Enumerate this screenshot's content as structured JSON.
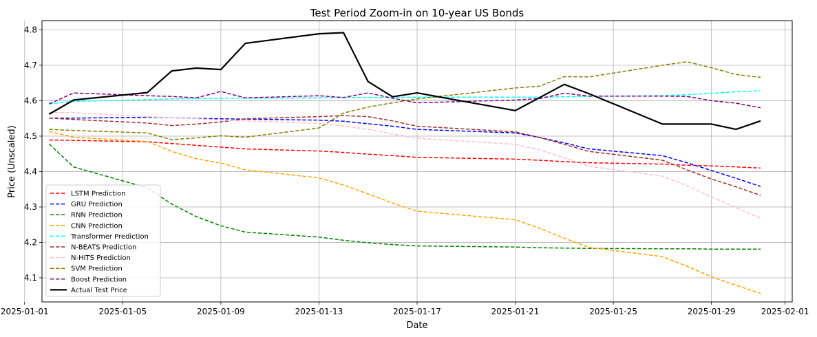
{
  "chart_data": {
    "type": "line",
    "title": "Test Period Zoom-in on 10-year US Bonds",
    "xlabel": "Date",
    "ylabel": "Price (Unscaled)",
    "xlim": [
      "2025-01-01T17:00",
      "2025-02-01T07:00"
    ],
    "ylim": [
      4.032,
      4.826
    ],
    "grid": true,
    "legend_position": "lower-left",
    "x_ticks": [
      "2025-01-01",
      "2025-01-05",
      "2025-01-09",
      "2025-01-13",
      "2025-01-17",
      "2025-01-21",
      "2025-01-25",
      "2025-01-29",
      "2025-02-01"
    ],
    "y_ticks": [
      "4.1",
      "4.2",
      "4.3",
      "4.4",
      "4.5",
      "4.6",
      "4.7",
      "4.8"
    ],
    "x": [
      "2025-01-02",
      "2025-01-03",
      "2025-01-06",
      "2025-01-07",
      "2025-01-08",
      "2025-01-09",
      "2025-01-10",
      "2025-01-13",
      "2025-01-14",
      "2025-01-15",
      "2025-01-16",
      "2025-01-17",
      "2025-01-21",
      "2025-01-22",
      "2025-01-23",
      "2025-01-24",
      "2025-01-27",
      "2025-01-28",
      "2025-01-29",
      "2025-01-30",
      "2025-01-31"
    ],
    "series": [
      {
        "name": "LSTM Prediction",
        "color": "#ff0000",
        "dash": true,
        "values": [
          4.489,
          4.488,
          4.484,
          4.479,
          4.474,
          4.469,
          4.464,
          4.458,
          4.454,
          4.449,
          4.445,
          4.44,
          4.435,
          4.432,
          4.428,
          4.425,
          4.421,
          4.418,
          4.416,
          4.413,
          4.41
        ]
      },
      {
        "name": "GRU Prediction",
        "color": "#0000ff",
        "dash": true,
        "values": [
          4.551,
          4.551,
          4.553,
          4.552,
          4.55,
          4.549,
          4.548,
          4.545,
          4.542,
          4.535,
          4.528,
          4.519,
          4.509,
          4.496,
          4.481,
          4.464,
          4.445,
          4.425,
          4.403,
          4.381,
          4.358
        ]
      },
      {
        "name": "RNN Prediction",
        "color": "#008000",
        "dash": true,
        "values": [
          4.478,
          4.413,
          4.354,
          4.308,
          4.273,
          4.247,
          4.229,
          4.215,
          4.206,
          4.199,
          4.194,
          4.19,
          4.187,
          4.185,
          4.184,
          4.183,
          4.182,
          4.182,
          4.181,
          4.181,
          4.181
        ]
      },
      {
        "name": "CNN Prediction",
        "color": "#ffa500",
        "dash": true,
        "values": [
          4.513,
          4.497,
          4.485,
          4.457,
          4.436,
          4.424,
          4.405,
          4.382,
          4.362,
          4.337,
          4.311,
          4.288,
          4.264,
          4.24,
          4.212,
          4.186,
          4.16,
          4.133,
          4.103,
          4.079,
          4.056
        ]
      },
      {
        "name": "Transformer Prediction",
        "color": "#00ffff",
        "dash": true,
        "values": [
          4.591,
          4.598,
          4.603,
          4.605,
          4.606,
          4.607,
          4.607,
          4.608,
          4.609,
          4.609,
          4.609,
          4.61,
          4.61,
          4.61,
          4.611,
          4.612,
          4.614,
          4.617,
          4.621,
          4.625,
          4.628
        ]
      },
      {
        "name": "N-BEATS Prediction",
        "color": "#a52a2a",
        "dash": true,
        "values": [
          4.551,
          4.547,
          4.537,
          4.53,
          4.534,
          4.54,
          4.549,
          4.555,
          4.558,
          4.555,
          4.543,
          4.528,
          4.512,
          4.496,
          4.477,
          4.457,
          4.432,
          4.405,
          4.379,
          4.357,
          4.333
        ]
      },
      {
        "name": "N-HITS Prediction",
        "color": "#ffc0cb",
        "dash": true,
        "values": [
          4.567,
          4.566,
          4.555,
          4.552,
          4.549,
          4.545,
          4.543,
          4.536,
          4.529,
          4.519,
          4.506,
          4.494,
          4.477,
          4.461,
          4.439,
          4.415,
          4.387,
          4.36,
          4.328,
          4.298,
          4.268
        ]
      },
      {
        "name": "SVM Prediction",
        "color": "#808000",
        "dash": true,
        "values": [
          4.519,
          4.516,
          4.509,
          4.49,
          4.495,
          4.501,
          4.497,
          4.523,
          4.565,
          4.582,
          4.594,
          4.605,
          4.636,
          4.641,
          4.668,
          4.667,
          4.7,
          4.71,
          4.693,
          4.674,
          4.666
        ]
      },
      {
        "name": "Boost Prediction",
        "color": "#800080",
        "dash": true,
        "values": [
          4.591,
          4.622,
          4.614,
          4.612,
          4.608,
          4.626,
          4.608,
          4.614,
          4.609,
          4.622,
          4.607,
          4.594,
          4.602,
          4.606,
          4.621,
          4.613,
          4.613,
          4.612,
          4.6,
          4.593,
          4.58
        ]
      },
      {
        "name": "Actual Test Price",
        "color": "#000000",
        "dash": false,
        "values": [
          4.562,
          4.602,
          4.623,
          4.684,
          4.692,
          4.688,
          4.762,
          4.789,
          4.792,
          4.654,
          4.611,
          4.622,
          4.572,
          4.609,
          4.646,
          4.62,
          4.534,
          4.534,
          4.534,
          4.519,
          4.543
        ]
      }
    ]
  }
}
